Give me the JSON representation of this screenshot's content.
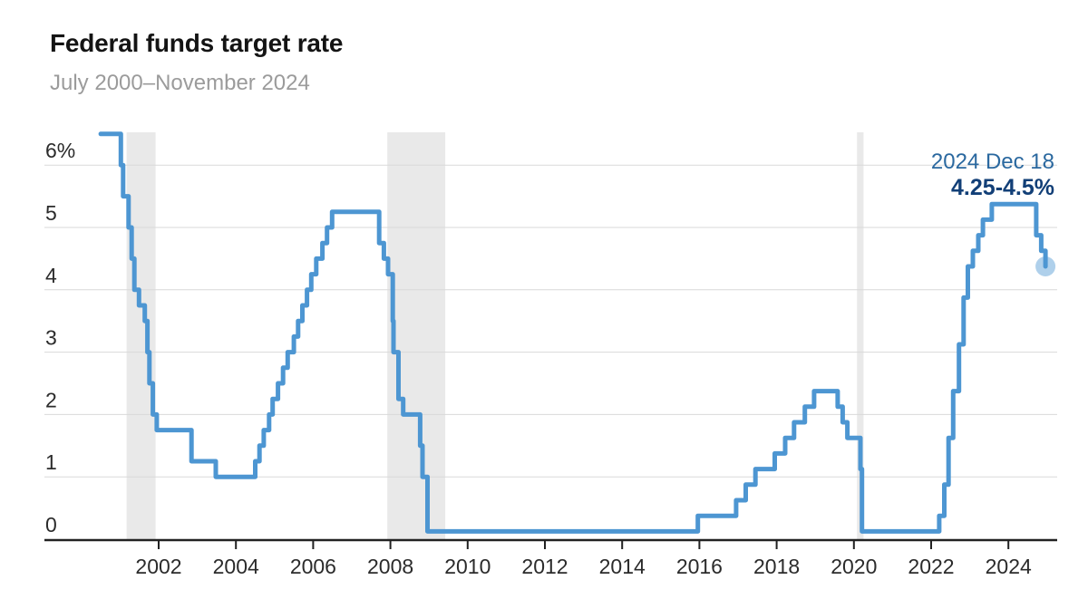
{
  "header": {
    "title": "Federal funds target rate",
    "subtitle": "July 2000–November 2024"
  },
  "colors": {
    "line": "#4d96d2",
    "endpoint_dot": "#4d96d2",
    "recession_band": "#e9e9e9",
    "gridline": "#d9d9d9",
    "axis": "#222222",
    "tick_text": "#2b2b2b",
    "title_text": "#141414",
    "subtitle_text": "#9b9b9b",
    "annotation_date": "#2a689f",
    "annotation_value": "#123f77"
  },
  "chart_data": {
    "type": "line",
    "line_style": "step-after",
    "title": "Federal funds target rate",
    "subtitle": "July 2000–November 2024",
    "grid": "horizontal",
    "x_range": [
      2000.5,
      2025.2
    ],
    "y_range": [
      0,
      6.6
    ],
    "x_ticks": [
      2002,
      2004,
      2006,
      2008,
      2010,
      2012,
      2014,
      2016,
      2018,
      2020,
      2022,
      2024
    ],
    "y_ticks": [
      {
        "value": 0,
        "label": "0"
      },
      {
        "value": 1,
        "label": "1"
      },
      {
        "value": 2,
        "label": "2"
      },
      {
        "value": 3,
        "label": "3"
      },
      {
        "value": 4,
        "label": "4"
      },
      {
        "value": 5,
        "label": "5"
      },
      {
        "value": 6,
        "label": "6%"
      }
    ],
    "recession_bands": [
      [
        2001.17,
        2001.92
      ],
      [
        2007.92,
        2009.42
      ],
      [
        2020.08,
        2020.25
      ]
    ],
    "series": [
      {
        "name": "Federal funds target rate",
        "points": [
          [
            2000.5,
            6.5
          ],
          [
            2001.02,
            6.0
          ],
          [
            2001.08,
            5.5
          ],
          [
            2001.22,
            5.0
          ],
          [
            2001.3,
            4.5
          ],
          [
            2001.37,
            4.0
          ],
          [
            2001.49,
            3.75
          ],
          [
            2001.64,
            3.5
          ],
          [
            2001.71,
            3.0
          ],
          [
            2001.76,
            2.5
          ],
          [
            2001.85,
            2.0
          ],
          [
            2001.95,
            1.75
          ],
          [
            2002.85,
            1.25
          ],
          [
            2003.48,
            1.0
          ],
          [
            2004.5,
            1.25
          ],
          [
            2004.61,
            1.5
          ],
          [
            2004.72,
            1.75
          ],
          [
            2004.86,
            2.0
          ],
          [
            2004.95,
            2.25
          ],
          [
            2005.09,
            2.5
          ],
          [
            2005.22,
            2.75
          ],
          [
            2005.34,
            3.0
          ],
          [
            2005.5,
            3.25
          ],
          [
            2005.61,
            3.5
          ],
          [
            2005.72,
            3.75
          ],
          [
            2005.84,
            4.0
          ],
          [
            2005.95,
            4.25
          ],
          [
            2006.08,
            4.5
          ],
          [
            2006.24,
            4.75
          ],
          [
            2006.36,
            5.0
          ],
          [
            2006.49,
            5.25
          ],
          [
            2007.71,
            4.75
          ],
          [
            2007.83,
            4.5
          ],
          [
            2007.94,
            4.25
          ],
          [
            2008.06,
            3.5
          ],
          [
            2008.08,
            3.0
          ],
          [
            2008.21,
            2.25
          ],
          [
            2008.33,
            2.0
          ],
          [
            2008.77,
            1.5
          ],
          [
            2008.83,
            1.0
          ],
          [
            2008.96,
            0.125
          ],
          [
            2015.96,
            0.375
          ],
          [
            2016.95,
            0.625
          ],
          [
            2017.2,
            0.875
          ],
          [
            2017.45,
            1.125
          ],
          [
            2017.95,
            1.375
          ],
          [
            2018.22,
            1.625
          ],
          [
            2018.45,
            1.875
          ],
          [
            2018.73,
            2.125
          ],
          [
            2018.97,
            2.375
          ],
          [
            2019.58,
            2.125
          ],
          [
            2019.71,
            1.875
          ],
          [
            2019.83,
            1.625
          ],
          [
            2020.17,
            1.125
          ],
          [
            2020.21,
            0.125
          ],
          [
            2022.21,
            0.375
          ],
          [
            2022.34,
            0.875
          ],
          [
            2022.45,
            1.625
          ],
          [
            2022.57,
            2.375
          ],
          [
            2022.72,
            3.125
          ],
          [
            2022.84,
            3.875
          ],
          [
            2022.95,
            4.375
          ],
          [
            2023.08,
            4.625
          ],
          [
            2023.22,
            4.875
          ],
          [
            2023.34,
            5.125
          ],
          [
            2023.57,
            5.375
          ],
          [
            2024.72,
            4.875
          ],
          [
            2024.85,
            4.625
          ],
          [
            2024.96,
            4.375
          ]
        ]
      }
    ],
    "annotation": {
      "date_label": "2024 Dec 18",
      "value_label": "4.25-4.5%",
      "x": 2024.96,
      "y": 4.375
    }
  }
}
